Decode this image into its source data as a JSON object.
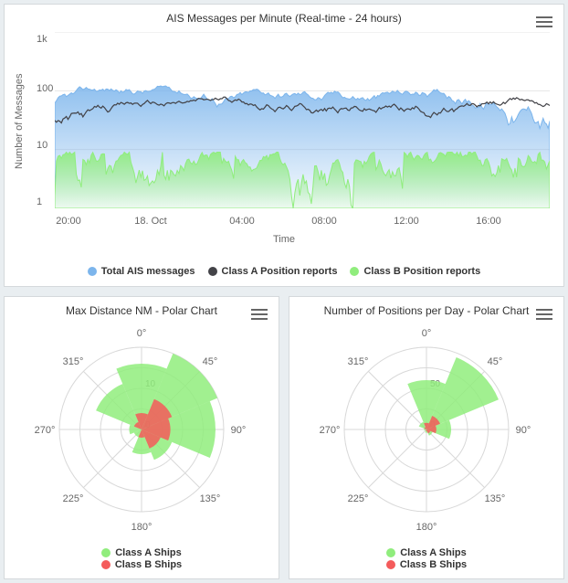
{
  "topChart": {
    "title": "AIS Messages per Minute (Real-time - 24 hours)",
    "type": "area-line-log",
    "yAxisTitle": "Number of Messages",
    "xAxisTitle": "Time",
    "yScale": "log",
    "ylim": [
      1,
      1000
    ],
    "yTicks": [
      "1",
      "10",
      "100",
      "1k"
    ],
    "xTicks": [
      "20:00",
      "18. Oct",
      "04:00",
      "08:00",
      "12:00",
      "16:00"
    ],
    "background_color": "#ffffff",
    "grid_color": "#e6e6e6",
    "series": [
      {
        "name": "Total AIS messages",
        "color": "#7cb5ec",
        "type": "area",
        "fill_opacity": 0.75,
        "approx_range": [
          30,
          90
        ],
        "approx_mean": 55
      },
      {
        "name": "Class A Position reports",
        "color": "#434348",
        "type": "line",
        "line_width": 1,
        "approx_range": [
          10,
          50
        ],
        "approx_mean": 28
      },
      {
        "name": "Class B Position reports",
        "color": "#90ed7d",
        "type": "area",
        "fill_opacity": 0.75,
        "approx_range": [
          1,
          8
        ],
        "approx_mean": 3
      }
    ],
    "legend": [
      {
        "label": "Total AIS messages",
        "color": "#7cb5ec"
      },
      {
        "label": "Class A Position reports",
        "color": "#434348"
      },
      {
        "label": "Class B Position reports",
        "color": "#90ed7d"
      }
    ],
    "title_fontsize": 12,
    "tick_fontsize": 11
  },
  "polarLeft": {
    "title": "Max Distance NM - Polar Chart",
    "type": "polar-area",
    "angle_labels": [
      "0°",
      "45°",
      "90°",
      "135°",
      "180°",
      "225°",
      "270°",
      "315°"
    ],
    "radial_ticks": [
      0,
      10
    ],
    "radial_max": 20,
    "grid_color": "#d8d8d8",
    "background_color": "#ffffff",
    "series": [
      {
        "name": "Class A Ships",
        "color": "#90ed7d",
        "values": [
          16,
          20,
          18,
          8,
          6,
          2,
          3,
          12
        ]
      },
      {
        "name": "Class B Ships",
        "color": "#f45b5b",
        "values": [
          4,
          8,
          7,
          5,
          2,
          0,
          0,
          2
        ]
      }
    ],
    "legend": [
      {
        "label": "Class A Ships",
        "color": "#90ed7d"
      },
      {
        "label": "Class B Ships",
        "color": "#f45b5b"
      }
    ]
  },
  "polarRight": {
    "title": "Number of Positions per Day - Polar Chart",
    "type": "polar-area",
    "angle_labels": [
      "0°",
      "45°",
      "90°",
      "135°",
      "180°",
      "225°",
      "270°",
      "315°"
    ],
    "radial_ticks": [
      0,
      50
    ],
    "radial_max": 100,
    "grid_color": "#d8d8d8",
    "background_color": "#ffffff",
    "series": [
      {
        "name": "Class A Ships",
        "color": "#90ed7d",
        "values": [
          60,
          95,
          30,
          8,
          4,
          2,
          3,
          10
        ]
      },
      {
        "name": "Class B Ships",
        "color": "#f45b5b",
        "values": [
          8,
          18,
          12,
          5,
          2,
          0,
          0,
          3
        ]
      }
    ],
    "legend": [
      {
        "label": "Class A Ships",
        "color": "#90ed7d"
      },
      {
        "label": "Class B Ships",
        "color": "#f45b5b"
      }
    ]
  }
}
